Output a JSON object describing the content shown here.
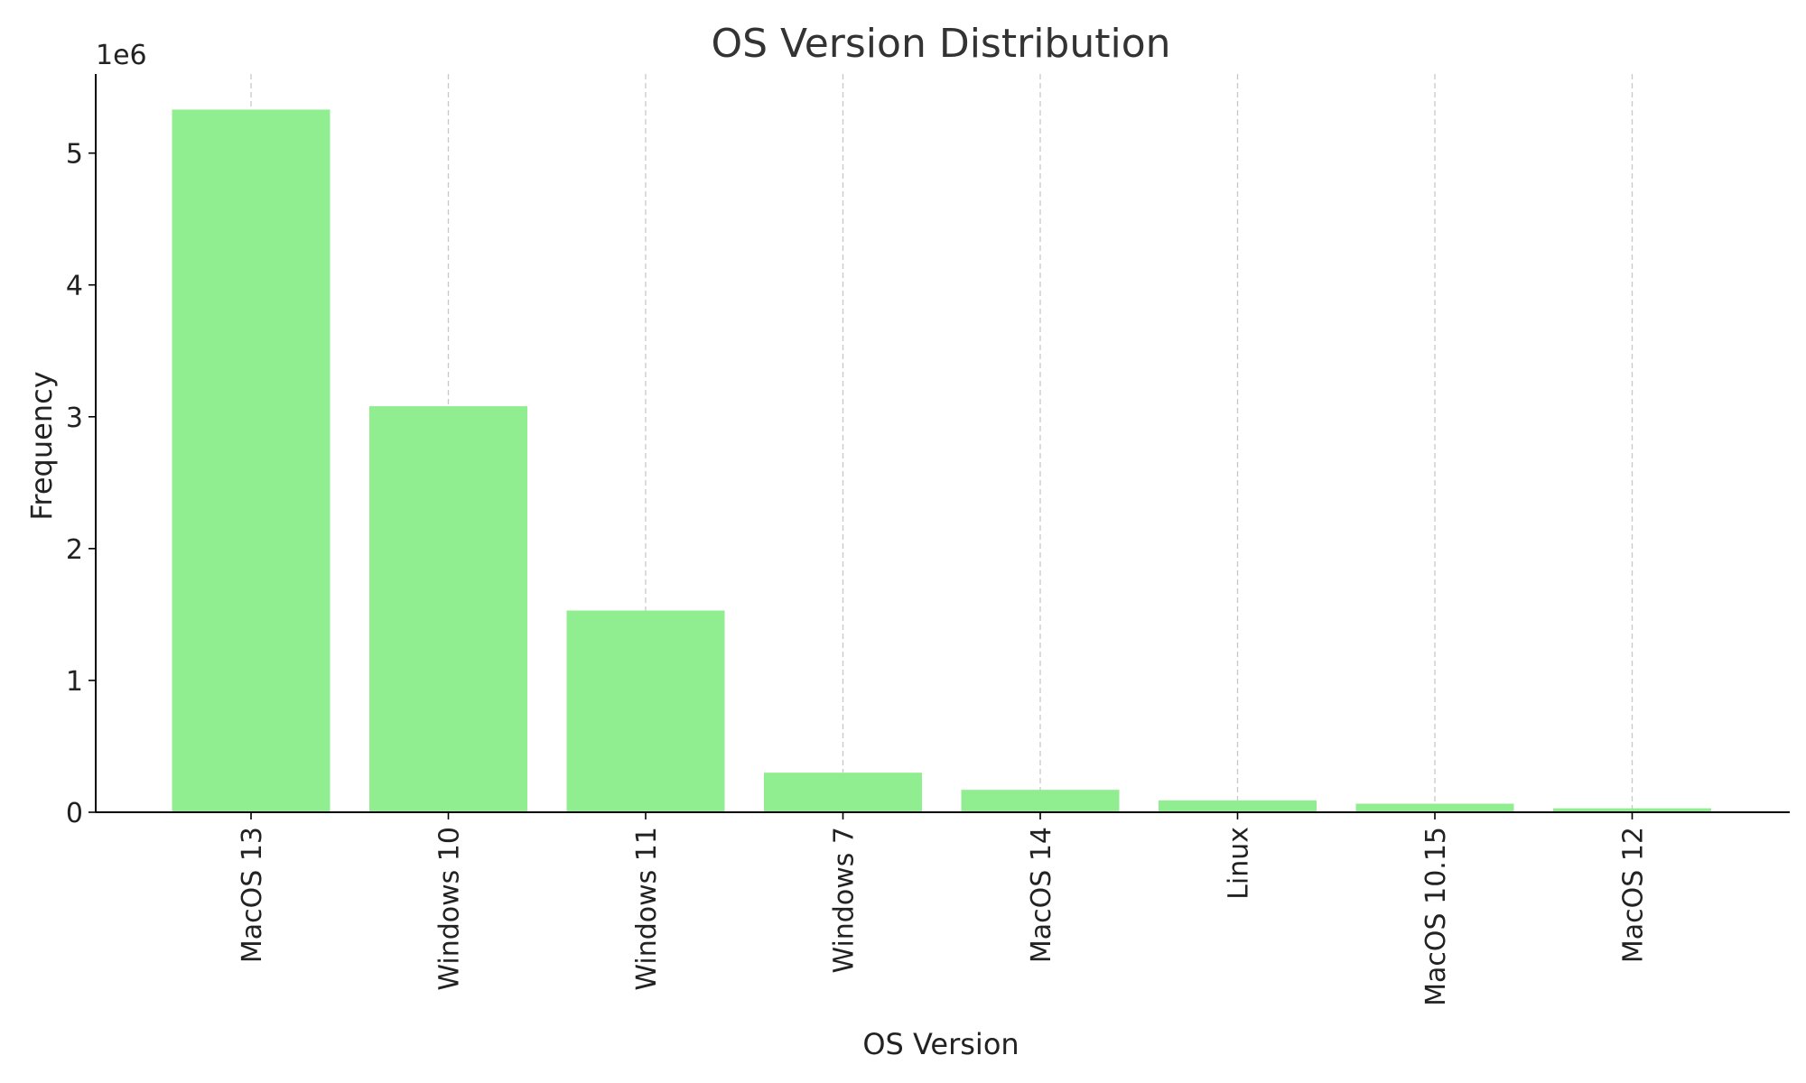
{
  "chart_data": {
    "type": "bar",
    "title": "OS Version Distribution",
    "xlabel": "OS Version",
    "ylabel": "Frequency",
    "y_offset_label": "1e6",
    "categories": [
      "MacOS 13",
      "Windows 10",
      "Windows 11",
      "Windows 7",
      "MacOS 14",
      "Linux",
      "MacOS 10.15",
      "MacOS 12"
    ],
    "values": [
      5330000,
      3080000,
      1530000,
      300000,
      170000,
      90000,
      65000,
      30000
    ],
    "ylim": [
      0,
      5600000
    ],
    "yticks": [
      0,
      1000000,
      2000000,
      3000000,
      4000000,
      5000000
    ],
    "ytick_labels": [
      "0",
      "1",
      "2",
      "3",
      "4",
      "5"
    ],
    "grid": "x-dashed",
    "legend": "none",
    "colors": {
      "bar": "#90ee90",
      "grid": "#c8c8c8",
      "axis": "#000000"
    }
  }
}
